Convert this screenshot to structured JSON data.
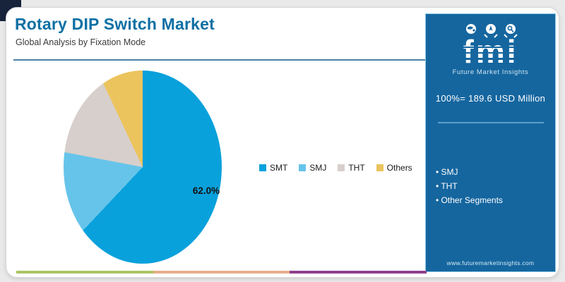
{
  "page": {
    "title": "Rotary DIP Switch Market",
    "subtitle": "Global Analysis by Fixation Mode"
  },
  "chart_data": {
    "type": "pie",
    "title": "Rotary DIP Switch Market",
    "subtitle": "Global Analysis by Fixation Mode",
    "categories": [
      "SMT",
      "SMJ",
      "THT",
      "Others"
    ],
    "values": [
      62.0,
      16.0,
      15.0,
      7.0
    ],
    "colors": [
      "#09a1dc",
      "#66c4ea",
      "#d7cfcb",
      "#ecc45e"
    ],
    "data_label": "62.0%",
    "labeled_slice": "SMT",
    "legend_position": "right-of-chart",
    "total_note": "100%= 189.6 USD Million"
  },
  "sidebar": {
    "logo_text": "fmi",
    "logo_subtext": "Future Market Insights",
    "total_label": "100%= 189.6 USD Million",
    "bullets": [
      "SMJ",
      "THT",
      "Other Segments"
    ],
    "website": "www.futuremarketinsights.com",
    "bg_color": "#15669f"
  },
  "footer": {
    "stripe_colors": [
      "#adc464",
      "#e8ae8a",
      "#8e3f8c"
    ]
  },
  "theme": {
    "title_color": "#0e70a4",
    "corner_accent_color": "#18233c",
    "header_rule_color": "#4f82a4"
  }
}
